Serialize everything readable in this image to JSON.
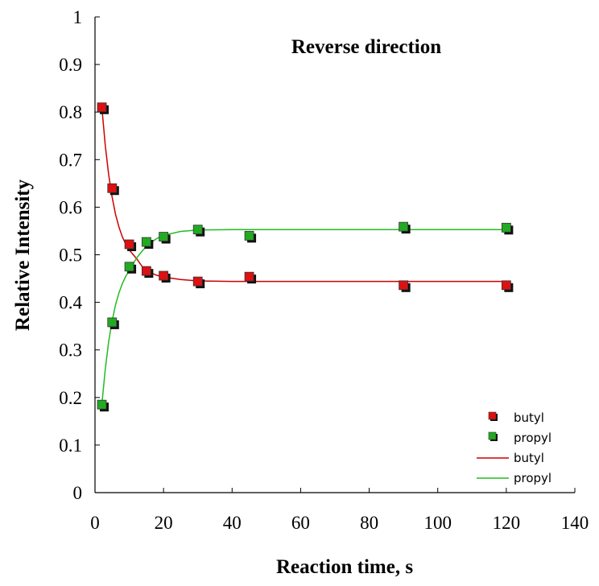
{
  "chart_data": {
    "type": "scatter",
    "title": "Reverse direction",
    "xlabel": "Reaction time, s",
    "ylabel": "Relative Intensity",
    "xlim": [
      0,
      140
    ],
    "ylim": [
      0,
      1
    ],
    "xticks": [
      0,
      20,
      40,
      60,
      80,
      100,
      120,
      140
    ],
    "yticks": [
      0,
      0.1,
      0.2,
      0.3,
      0.4,
      0.5,
      0.6,
      0.7,
      0.8,
      0.9,
      1
    ],
    "xtick_labels": [
      "0",
      "20",
      "40",
      "60",
      "80",
      "100",
      "120",
      "140"
    ],
    "ytick_labels": [
      "0",
      "0.1",
      "0.2",
      "0.3",
      "0.4",
      "0.5",
      "0.6",
      "0.7",
      "0.8",
      "0.9",
      "1"
    ],
    "grid": false,
    "legend_position": "bottom-right",
    "series": [
      {
        "name": "butyl",
        "kind": "markers",
        "color": "#dd1111",
        "x": [
          2,
          5,
          10,
          15,
          20,
          30,
          45,
          90,
          120
        ],
        "y": [
          0.81,
          0.64,
          0.522,
          0.466,
          0.456,
          0.444,
          0.454,
          0.436,
          0.436
        ]
      },
      {
        "name": "propyl",
        "kind": "markers",
        "color": "#22aa22",
        "x": [
          2,
          5,
          10,
          15,
          20,
          30,
          45,
          90,
          120
        ],
        "y": [
          0.185,
          0.358,
          0.475,
          0.527,
          0.538,
          0.553,
          0.54,
          0.559,
          0.557
        ]
      },
      {
        "name": "butyl",
        "kind": "line",
        "color": "#cc0000",
        "x": [
          2,
          3,
          4,
          5,
          6,
          7,
          8,
          9,
          10,
          12,
          14,
          16,
          18,
          20,
          25,
          30,
          40,
          50,
          60,
          80,
          100,
          121
        ],
        "y": [
          0.81,
          0.729,
          0.668,
          0.621,
          0.585,
          0.558,
          0.537,
          0.522,
          0.51,
          0.493,
          0.473,
          0.463,
          0.457,
          0.453,
          0.448,
          0.445,
          0.444,
          0.444,
          0.444,
          0.444,
          0.444,
          0.444
        ]
      },
      {
        "name": "propyl",
        "kind": "line",
        "color": "#22bb22",
        "x": [
          2,
          3,
          4,
          5,
          6,
          7,
          8,
          9,
          10,
          12,
          14,
          16,
          18,
          20,
          25,
          30,
          40,
          50,
          60,
          80,
          100,
          121
        ],
        "y": [
          0.185,
          0.26,
          0.318,
          0.361,
          0.395,
          0.42,
          0.44,
          0.455,
          0.467,
          0.492,
          0.51,
          0.524,
          0.534,
          0.541,
          0.549,
          0.552,
          0.553,
          0.553,
          0.553,
          0.553,
          0.553,
          0.553
        ]
      }
    ]
  }
}
